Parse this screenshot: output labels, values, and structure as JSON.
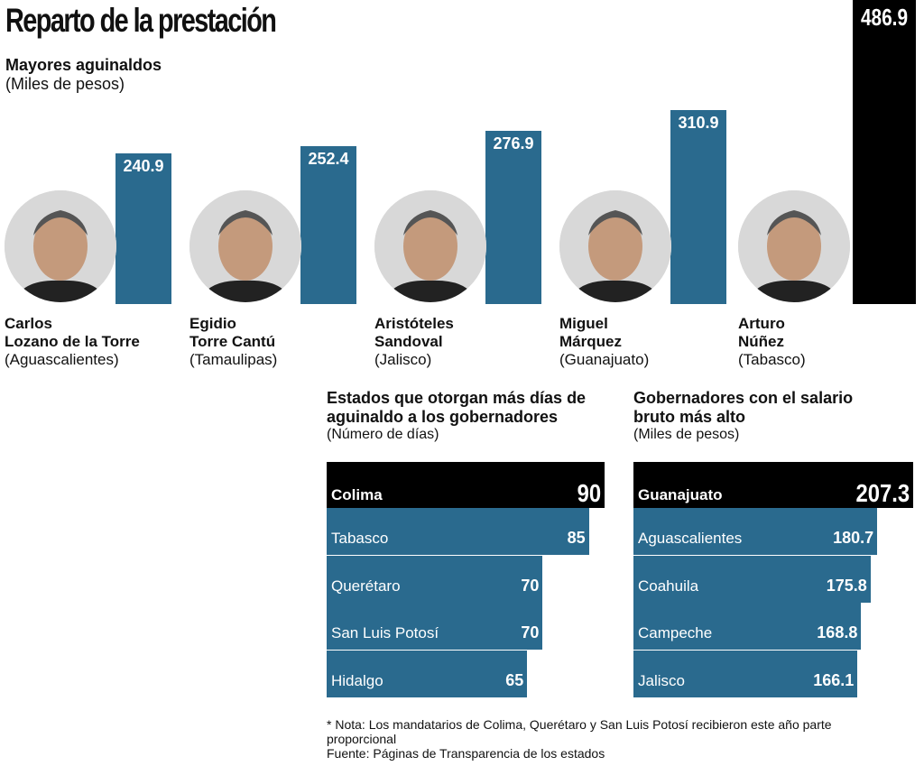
{
  "title": "Reparto de la prestación",
  "chart_data": [
    {
      "type": "bar",
      "title": "Mayores aguinaldos",
      "unit": "(Miles de pesos)",
      "categories": [
        {
          "first": "Carlos",
          "last": "Lozano de la Torre",
          "state": "(Aguascalientes)"
        },
        {
          "first": "Egidio",
          "last": "Torre Cantú",
          "state": "(Tamaulipas)"
        },
        {
          "first": "Aristóteles",
          "last": "Sandoval",
          "state": "(Jalisco)"
        },
        {
          "first": "Miguel",
          "last": "Márquez",
          "state": "(Guanajuato)"
        },
        {
          "first": "Arturo",
          "last": "Núñez",
          "state": "(Tabasco)"
        }
      ],
      "values": [
        240.9,
        252.4,
        276.9,
        310.9,
        486.9
      ],
      "labels": [
        "240.9",
        "252.4",
        "276.9",
        "310.9",
        "486.9"
      ]
    },
    {
      "type": "bar",
      "orientation": "horizontal",
      "title": "Estados que otorgan más días de aguinaldo a los gobernadores",
      "unit": "(Número de días)",
      "categories": [
        "Colima",
        "Tabasco",
        "Querétaro",
        "San Luis Potosí",
        "Hidalgo"
      ],
      "values": [
        90,
        85,
        70,
        70,
        65
      ],
      "labels": [
        "90",
        "85",
        "70",
        "70",
        "65"
      ]
    },
    {
      "type": "bar",
      "orientation": "horizontal",
      "title": "Gobernadores con el salario bruto más alto",
      "unit": "(Miles de pesos)",
      "categories": [
        "Guanajuato",
        "Aguascalientes",
        "Coahuila",
        "Campeche",
        "Jalisco"
      ],
      "values": [
        207.3,
        180.7,
        175.8,
        168.8,
        166.1
      ],
      "labels": [
        "207.3",
        "180.7",
        "175.8",
        "168.8",
        "166.1"
      ]
    }
  ],
  "note": "* Nota: Los mandatarios de Colima, Querétaro y  San Luis Potosí recibieron este año parte proporcional",
  "source": "Fuente: Páginas de Transparencia de los estados",
  "colors": {
    "bar": "#2a6a8e",
    "highlight": "#000000"
  }
}
